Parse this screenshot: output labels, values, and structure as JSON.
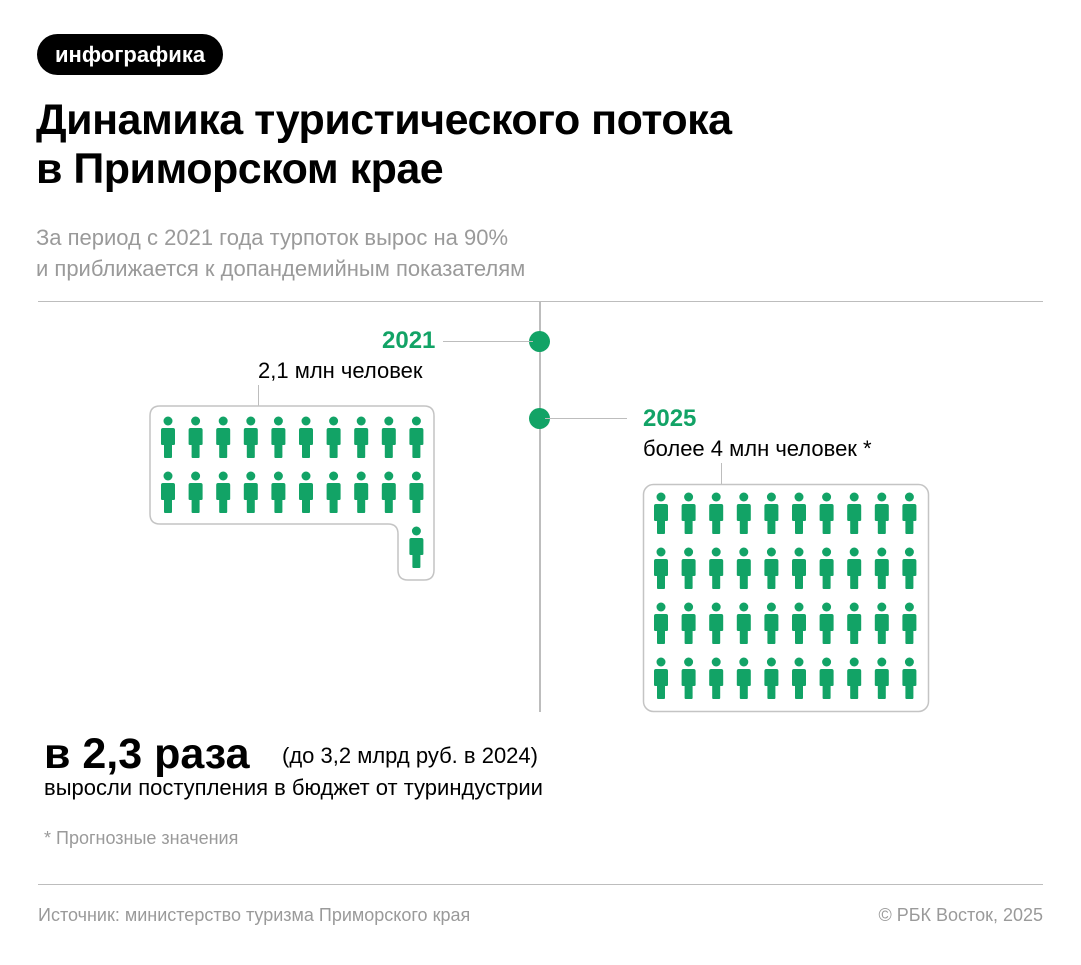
{
  "tag": "инфографика",
  "title_line1": "Динамика туристического потока",
  "title_line2": "в Приморском крае",
  "subtitle_line1": "За период с 2021 года турпоток вырос на 90%",
  "subtitle_line2": "и приближается к допандемийным показателям",
  "accent_color": "#12a366",
  "chart_data": {
    "type": "pictogram",
    "categories": [
      "2021",
      "2025"
    ],
    "values": [
      2.1,
      4
    ],
    "icon_counts": [
      21,
      40
    ],
    "icon": "person-icon",
    "labels": [
      "2,1 млн человек",
      "более 4 млн человек *"
    ]
  },
  "highlight": {
    "value": "в 2,3 раза",
    "note": "(до 3,2 млрд руб. в 2024)",
    "desc": "выросли поступления в бюджет от туриндустрии"
  },
  "footnote": "*  Прогнозные значения",
  "source": "Источник: министерство туризма Приморского края",
  "copyright": "© РБК Восток, 2025"
}
